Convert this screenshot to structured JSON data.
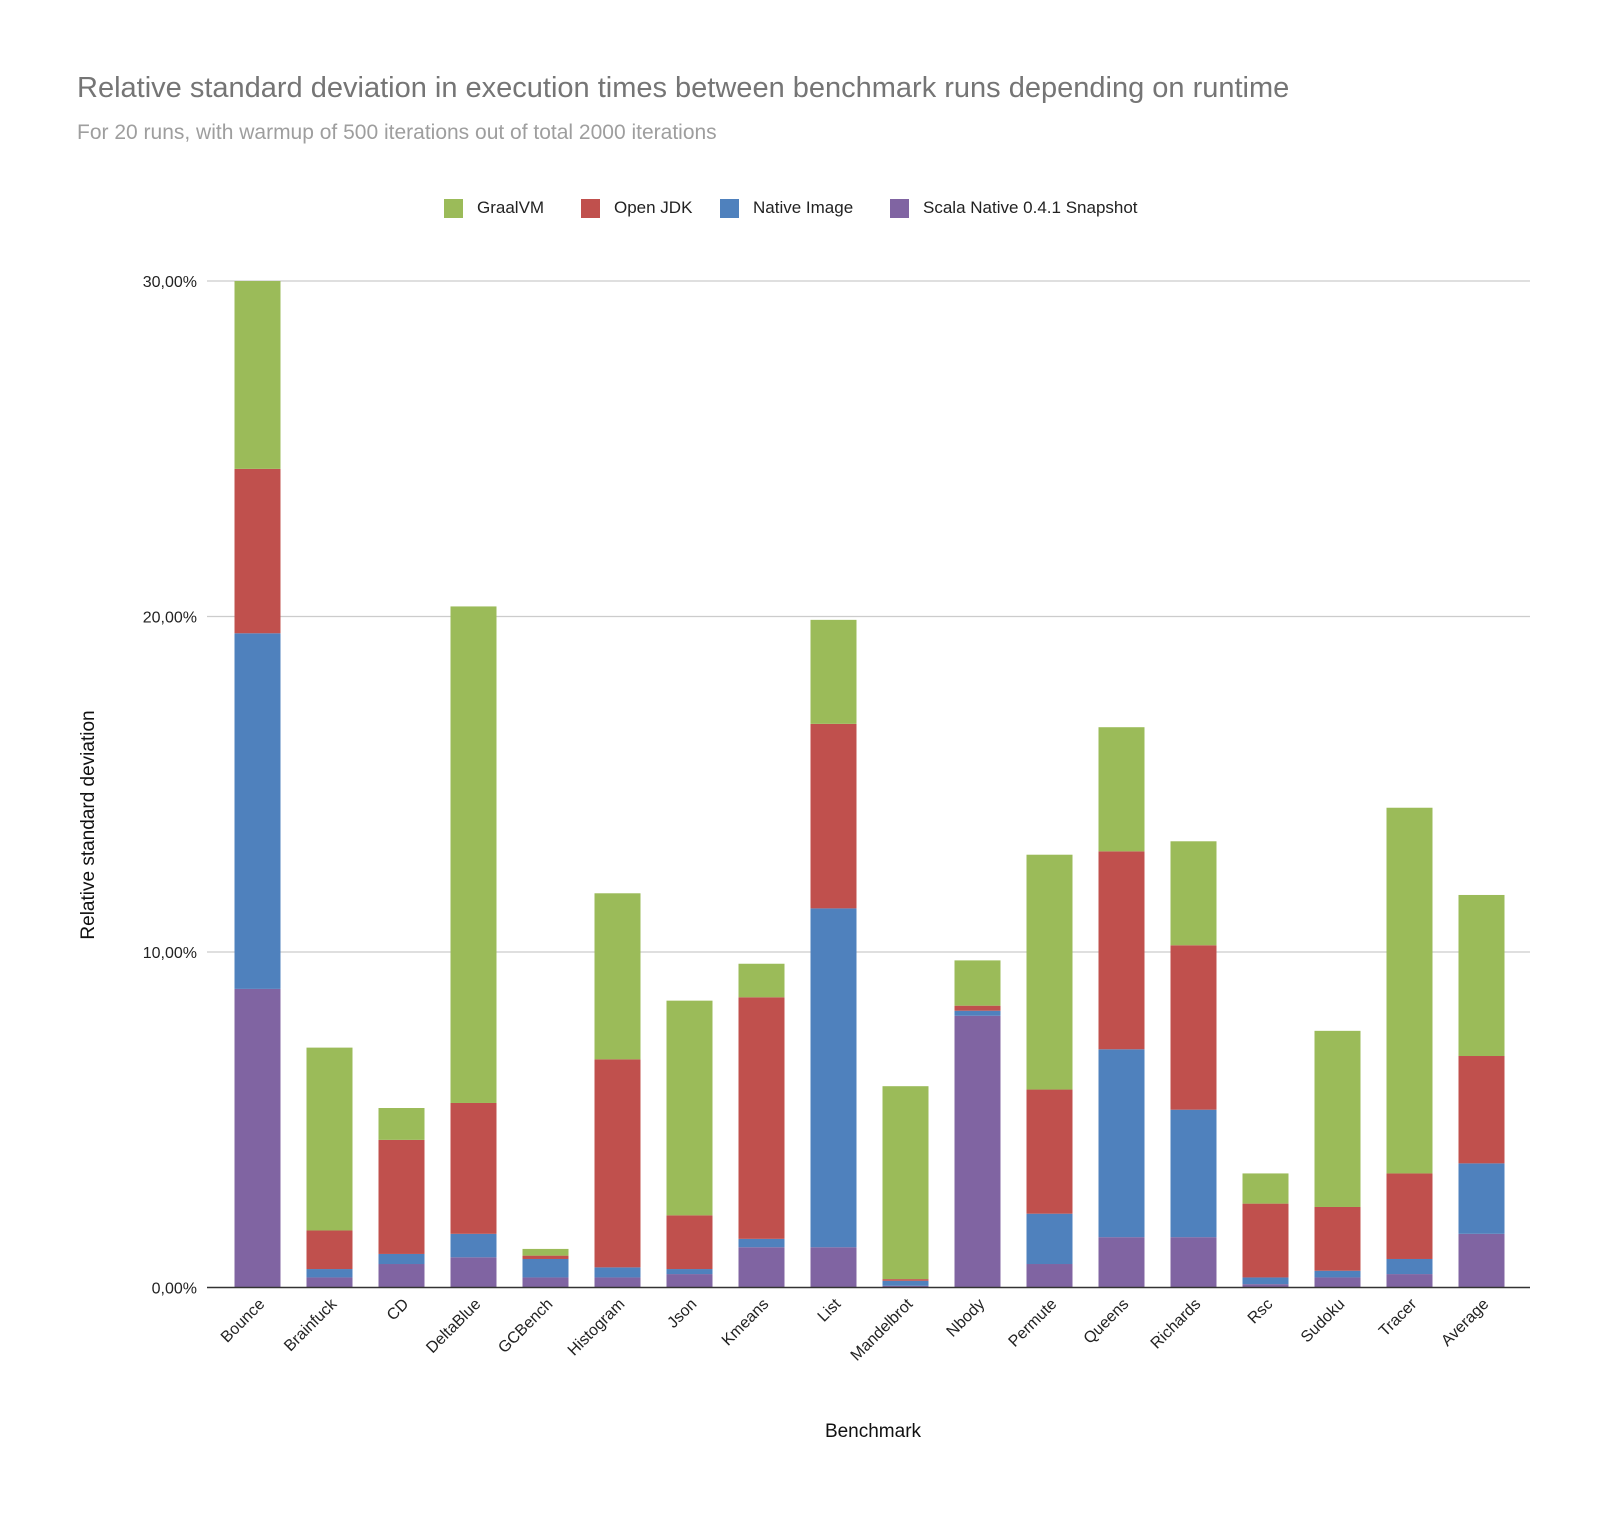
{
  "chart_data": {
    "type": "bar",
    "stacked": true,
    "title": "Relative standard deviation in execution times between benchmark runs depending on runtime",
    "subtitle": "For 20 runs, with warmup of 500 iterations out of total 2000 iterations",
    "xlabel": "Benchmark",
    "ylabel": "Relative standard deviation",
    "ylim": [
      0,
      30
    ],
    "yticks": [
      "0,00%",
      "10,00%",
      "20,00%",
      "30,00%"
    ],
    "grid": true,
    "legend_position": "top",
    "categories": [
      "Bounce",
      "Brainfuck",
      "CD",
      "DeltaBlue",
      "GCBench",
      "Histogram",
      "Json",
      "Kmeans",
      "List",
      "Mandelbrot",
      "Nbody",
      "Permute",
      "Queens",
      "Richards",
      "Rsc",
      "Sudoku",
      "Tracer",
      "Average"
    ],
    "series": [
      {
        "name": "Scala Native 0.4.1 Snapshot",
        "color": "#8064a2",
        "values": [
          8.9,
          0.3,
          0.7,
          0.9,
          0.3,
          0.3,
          0.4,
          1.2,
          1.2,
          0.05,
          8.1,
          0.7,
          1.5,
          1.5,
          0.1,
          0.3,
          0.4,
          1.6
        ]
      },
      {
        "name": "Native Image",
        "color": "#4f81bd",
        "values": [
          10.6,
          0.25,
          0.3,
          0.7,
          0.55,
          0.3,
          0.15,
          0.25,
          10.1,
          0.15,
          0.15,
          1.5,
          5.6,
          3.8,
          0.2,
          0.2,
          0.45,
          2.1
        ]
      },
      {
        "name": "Open JDK",
        "color": "#c0504d",
        "values": [
          4.9,
          1.15,
          3.4,
          3.9,
          0.1,
          6.2,
          1.6,
          7.2,
          5.5,
          0.05,
          0.15,
          3.7,
          5.9,
          4.9,
          2.2,
          1.9,
          2.55,
          3.2
        ]
      },
      {
        "name": "GraalVM",
        "color": "#9bbb59",
        "values": [
          5.6,
          5.45,
          0.95,
          14.8,
          0.2,
          4.95,
          6.4,
          1.0,
          3.1,
          5.75,
          1.35,
          7.0,
          3.7,
          3.1,
          0.9,
          5.25,
          10.9,
          4.8
        ]
      }
    ]
  }
}
